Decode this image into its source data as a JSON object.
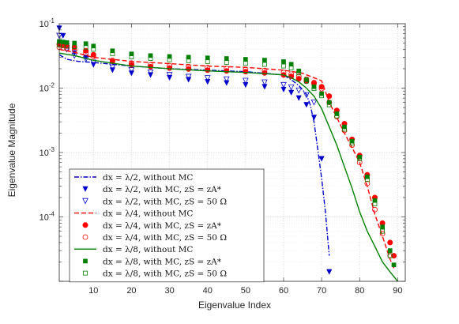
{
  "chart_data": {
    "type": "line",
    "title": "",
    "xlabel": "Eigenvalue Index",
    "ylabel": "Eigenvalue Magnitude",
    "xlim": [
      1,
      92
    ],
    "ylim": [
      1e-05,
      0.1
    ],
    "yscale": "log",
    "grid": true,
    "legend_position": "bottom-left",
    "x_ticks": [
      10,
      20,
      30,
      40,
      50,
      60,
      70,
      80,
      90
    ],
    "x_tick_labels": [
      "10",
      "20",
      "30",
      "40",
      "50",
      "60",
      "70",
      "80",
      "90"
    ],
    "y_ticks": [
      0.0001,
      0.001,
      0.01,
      0.1
    ],
    "y_tick_labels": [
      "10-4",
      "10-3",
      "10-2",
      "10-1"
    ],
    "series": [
      {
        "name": "dx = λ/2, without MC",
        "color": "#0000cc",
        "style": "dashdot",
        "marker": "none",
        "x": [
          1,
          3,
          6,
          10,
          20,
          30,
          40,
          50,
          60,
          62,
          64,
          66,
          67,
          68,
          69,
          70,
          71,
          72
        ],
        "y": [
          0.033,
          0.028,
          0.026,
          0.025,
          0.022,
          0.02,
          0.019,
          0.018,
          0.016,
          0.0135,
          0.011,
          0.008,
          0.0055,
          0.003,
          0.0011,
          0.0004,
          0.00012,
          2.5e-05
        ]
      },
      {
        "name": "dx = λ/2, with MC, zS = zA*",
        "color": "#0000cc",
        "style": "none",
        "marker": "triangle-down-filled",
        "x": [
          1,
          2,
          3,
          5,
          8,
          10,
          15,
          20,
          25,
          30,
          35,
          40,
          45,
          50,
          55,
          60,
          62,
          64,
          66,
          68,
          70,
          72
        ],
        "y": [
          0.085,
          0.065,
          0.045,
          0.035,
          0.03,
          0.023,
          0.019,
          0.017,
          0.016,
          0.0145,
          0.0135,
          0.0125,
          0.012,
          0.0112,
          0.0105,
          0.0095,
          0.0085,
          0.007,
          0.0055,
          0.0035,
          0.0008,
          1.4e-05
        ]
      },
      {
        "name": "dx = λ/2, with MC, zS = 50 Ω",
        "color": "#0000cc",
        "style": "none",
        "marker": "triangle-down-open",
        "x": [
          1,
          2,
          3,
          5,
          8,
          10,
          15,
          20,
          25,
          30,
          35,
          40,
          45,
          50,
          55,
          60,
          62,
          64,
          66,
          68
        ],
        "y": [
          0.065,
          0.05,
          0.04,
          0.032,
          0.028,
          0.025,
          0.021,
          0.019,
          0.0175,
          0.016,
          0.015,
          0.0143,
          0.0137,
          0.013,
          0.0123,
          0.0112,
          0.0103,
          0.0092,
          0.0078,
          0.006
        ]
      },
      {
        "name": "dx = λ/4, without MC",
        "color": "#ff0000",
        "style": "dashed",
        "marker": "none",
        "x": [
          1,
          5,
          10,
          20,
          30,
          40,
          50,
          60,
          65,
          70,
          72,
          74,
          76,
          78,
          80,
          82,
          84,
          86,
          88,
          89
        ],
        "y": [
          0.04,
          0.036,
          0.03,
          0.026,
          0.024,
          0.022,
          0.021,
          0.019,
          0.017,
          0.013,
          0.006,
          0.0035,
          0.002,
          0.0012,
          0.0007,
          0.0003,
          0.00011,
          5e-05,
          2.2e-05,
          1.6e-05
        ]
      },
      {
        "name": "dx = λ/4, with MC, zS = zA*",
        "color": "#ff0000",
        "style": "none",
        "marker": "circle-filled",
        "x": [
          1,
          2,
          3,
          5,
          8,
          10,
          15,
          20,
          25,
          30,
          35,
          40,
          45,
          50,
          55,
          60,
          62,
          64,
          66,
          68,
          70,
          72,
          74,
          76,
          78,
          80,
          82,
          84,
          86,
          88,
          89
        ],
        "y": [
          0.048,
          0.046,
          0.045,
          0.043,
          0.038,
          0.033,
          0.026,
          0.023,
          0.0215,
          0.0205,
          0.0198,
          0.019,
          0.0185,
          0.018,
          0.0172,
          0.016,
          0.0152,
          0.014,
          0.0128,
          0.0118,
          0.0105,
          0.0075,
          0.0045,
          0.0028,
          0.0016,
          0.0009,
          0.00045,
          0.0002,
          8e-05,
          4e-05,
          2.5e-05
        ]
      },
      {
        "name": "dx = λ/4, with MC, zS = 50 Ω",
        "color": "#ff0000",
        "style": "none",
        "marker": "circle-open",
        "x": [
          1,
          2,
          3,
          5,
          8,
          10,
          15,
          20,
          25,
          30,
          35,
          40,
          45,
          50,
          55,
          60,
          62,
          64,
          66,
          68,
          70,
          72,
          74,
          76,
          78,
          80,
          82,
          84,
          86,
          88
        ],
        "y": [
          0.043,
          0.042,
          0.041,
          0.039,
          0.035,
          0.031,
          0.027,
          0.0245,
          0.023,
          0.0222,
          0.0215,
          0.0208,
          0.0202,
          0.0195,
          0.0188,
          0.0175,
          0.0165,
          0.0152,
          0.0138,
          0.0122,
          0.0098,
          0.006,
          0.0036,
          0.0022,
          0.0013,
          0.0007,
          0.00033,
          0.00013,
          5.5e-05,
          2.5e-05
        ]
      },
      {
        "name": "dx = λ/8, without MC",
        "color": "#008000",
        "style": "solid",
        "marker": "none",
        "x": [
          1,
          5,
          10,
          20,
          30,
          40,
          50,
          60,
          62,
          64,
          66,
          68,
          70,
          72,
          74,
          76,
          78,
          80,
          82,
          84,
          86,
          88,
          90
        ],
        "y": [
          0.035,
          0.032,
          0.027,
          0.022,
          0.02,
          0.0185,
          0.0175,
          0.016,
          0.0145,
          0.0125,
          0.01,
          0.0075,
          0.0048,
          0.0025,
          0.0013,
          0.0006,
          0.00028,
          0.00012,
          6e-05,
          3.5e-05,
          2e-05,
          1.4e-05,
          1e-05
        ]
      },
      {
        "name": "dx = λ/8, with MC, zS = zA*",
        "color": "#008000",
        "style": "none",
        "marker": "square-filled",
        "x": [
          1,
          2,
          3,
          5,
          8,
          10,
          15,
          20,
          25,
          30,
          35,
          40,
          45,
          50,
          55,
          60,
          62,
          64,
          66,
          68,
          70,
          72,
          74,
          76,
          78,
          80,
          82,
          84,
          86,
          88,
          89
        ],
        "y": [
          0.053,
          0.052,
          0.051,
          0.05,
          0.049,
          0.045,
          0.038,
          0.034,
          0.032,
          0.031,
          0.0302,
          0.0295,
          0.0288,
          0.028,
          0.0272,
          0.0258,
          0.0235,
          0.0185,
          0.0135,
          0.0105,
          0.0082,
          0.006,
          0.004,
          0.0025,
          0.0015,
          0.00085,
          0.00042,
          0.00018,
          7e-05,
          3e-05,
          1.8e-05
        ]
      },
      {
        "name": "dx = λ/8, with MC, zS = 50 Ω",
        "color": "#008000",
        "style": "none",
        "marker": "square-open",
        "x": [
          1,
          2,
          3,
          5,
          8,
          10,
          15,
          20,
          25,
          30,
          35,
          40,
          45,
          50,
          55,
          60,
          62,
          64,
          66,
          68,
          70,
          72,
          74,
          76,
          78,
          80,
          82,
          84,
          86,
          88
        ],
        "y": [
          0.047,
          0.046,
          0.045,
          0.044,
          0.043,
          0.04,
          0.034,
          0.0305,
          0.0288,
          0.0275,
          0.0266,
          0.0258,
          0.025,
          0.0242,
          0.0233,
          0.022,
          0.0205,
          0.0172,
          0.0128,
          0.0098,
          0.0076,
          0.0055,
          0.0037,
          0.0023,
          0.0014,
          0.0008,
          0.00038,
          0.00016,
          6e-05,
          2.5e-05
        ]
      }
    ]
  },
  "legend": {
    "entries": [
      {
        "prefix": "dx = λ/2,",
        "suffix": " without MC"
      },
      {
        "prefix": "dx = λ/2,",
        "suffix": " with MC, zS = zA*"
      },
      {
        "prefix": "dx = λ/2,",
        "suffix": " with MC, zS = 50 Ω"
      },
      {
        "prefix": "dx = λ/4,",
        "suffix": " without MC"
      },
      {
        "prefix": "dx = λ/4,",
        "suffix": " with MC, zS = zA*"
      },
      {
        "prefix": "dx = λ/4,",
        "suffix": " with MC, zS = 50 Ω"
      },
      {
        "prefix": "dx = λ/8,",
        "suffix": " without MC"
      },
      {
        "prefix": "dx = λ/8,",
        "suffix": " with MC, zS = zA*"
      },
      {
        "prefix": "dx = λ/8,",
        "suffix": " with MC, zS = 50 Ω"
      }
    ]
  }
}
